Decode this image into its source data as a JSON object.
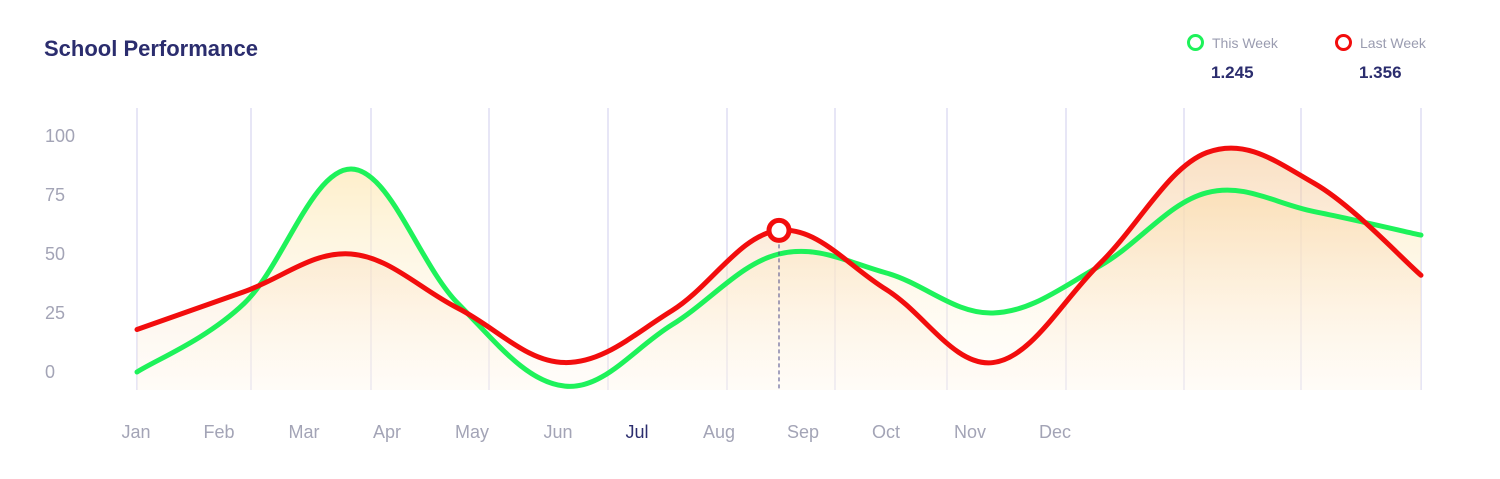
{
  "title": "School Performance",
  "legend": [
    {
      "label": "This Week",
      "value": "1.245",
      "color": "#1ef25a"
    },
    {
      "label": "Last Week",
      "value": "1.356",
      "color": "#f20d0d"
    }
  ],
  "chart_data": {
    "type": "area",
    "title": "School Performance",
    "xlabel": "",
    "ylabel": "",
    "ylim": [
      0,
      100
    ],
    "yticks": [
      "100",
      "75",
      "50",
      "25",
      "0"
    ],
    "categories": [
      "Jan",
      "Feb",
      "Mar",
      "Apr",
      "May",
      "Jun",
      "Jul",
      "Aug",
      "Sep",
      "Oct",
      "Nov",
      "Dec"
    ],
    "active_category": "Jul",
    "series": [
      {
        "name": "This Week",
        "color": "#1ef25a",
        "x": [
          0,
          1,
          2,
          3,
          4,
          5,
          6,
          7,
          8,
          9,
          10,
          11,
          12
        ],
        "values": [
          0,
          29,
          86,
          29,
          -6,
          20,
          50,
          42,
          25,
          45,
          76,
          68,
          58
        ]
      },
      {
        "name": "Last Week",
        "color": "#f20d0d",
        "x": [
          0,
          1,
          2,
          3,
          4,
          5,
          6,
          7,
          8,
          9,
          10,
          11,
          12
        ],
        "values": [
          18,
          34,
          50,
          27,
          4,
          26,
          60,
          35,
          4,
          46,
          93,
          80,
          41
        ]
      }
    ],
    "highlight": {
      "series": "Last Week",
      "x": 6,
      "value": 60
    },
    "grid": {
      "vertical": true,
      "horizontal": false
    },
    "legend_position": "top-right"
  }
}
